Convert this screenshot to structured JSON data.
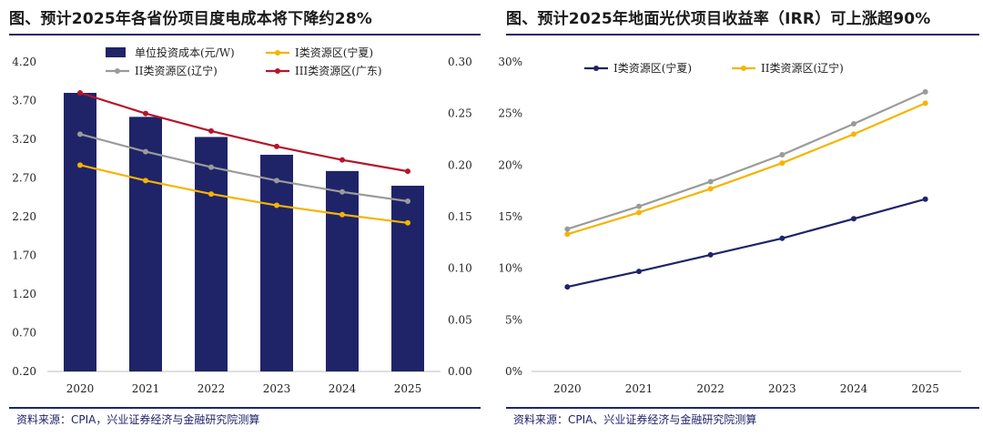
{
  "left": {
    "title": "图、预计2025年各省份项目度电成本将下降约28%",
    "source": "资料来源：CPIA，兴业证券经济与金融研究院测算"
  },
  "right": {
    "title": "图、预计2025年地面光伏项目收益率（IRR）可上涨超90%",
    "source": "资料来源：CPIA、兴业证券经济与金融研究院测算"
  },
  "chart_data": [
    {
      "type": "bar",
      "categories": [
        "2020",
        "2021",
        "2022",
        "2023",
        "2024",
        "2025"
      ],
      "bar_series": {
        "name": "单位投资成本(元/W)",
        "axis": "left",
        "color": "#1f2468",
        "values": [
          3.8,
          3.49,
          3.23,
          3.0,
          2.79,
          2.6
        ]
      },
      "line_series": [
        {
          "name": "I类资源区(宁夏)",
          "axis": "right",
          "color": "#f5b400",
          "values": [
            0.2,
            0.185,
            0.172,
            0.161,
            0.152,
            0.144
          ]
        },
        {
          "name": "II类资源区(辽宁)",
          "axis": "right",
          "color": "#9b9b9b",
          "values": [
            0.23,
            0.213,
            0.198,
            0.185,
            0.174,
            0.165
          ]
        },
        {
          "name": "III类资源区(广东)",
          "axis": "right",
          "color": "#b5152b",
          "values": [
            0.27,
            0.25,
            0.233,
            0.218,
            0.205,
            0.194
          ]
        }
      ],
      "ylim_left": [
        0.2,
        4.2
      ],
      "yticks_left": [
        "0.20",
        "0.70",
        "1.20",
        "1.70",
        "2.20",
        "2.70",
        "3.20",
        "3.70",
        "4.20"
      ],
      "ylim_right": [
        0.0,
        0.3
      ],
      "yticks_right": [
        "0.00",
        "0.05",
        "0.10",
        "0.15",
        "0.20",
        "0.25",
        "0.30"
      ],
      "legend_position": "top",
      "grid": false
    },
    {
      "type": "line",
      "categories": [
        "2020",
        "2021",
        "2022",
        "2023",
        "2024",
        "2025"
      ],
      "series": [
        {
          "name": "I类资源区(宁夏)",
          "color": "#1f2468",
          "values": [
            8.2,
            9.7,
            11.3,
            12.9,
            14.8,
            16.7
          ]
        },
        {
          "name": "II类资源区(辽宁)",
          "color": "#f5b400",
          "values": [
            13.3,
            15.4,
            17.7,
            20.2,
            23.0,
            26.0
          ]
        },
        {
          "name": "",
          "color": "#9b9b9b",
          "values": [
            13.8,
            16.0,
            18.4,
            21.0,
            24.0,
            27.1
          ]
        }
      ],
      "ylim": [
        0,
        30
      ],
      "yticks": [
        "0%",
        "5%",
        "10%",
        "15%",
        "20%",
        "25%",
        "30%"
      ],
      "legend_position": "top-left",
      "grid": false
    }
  ]
}
